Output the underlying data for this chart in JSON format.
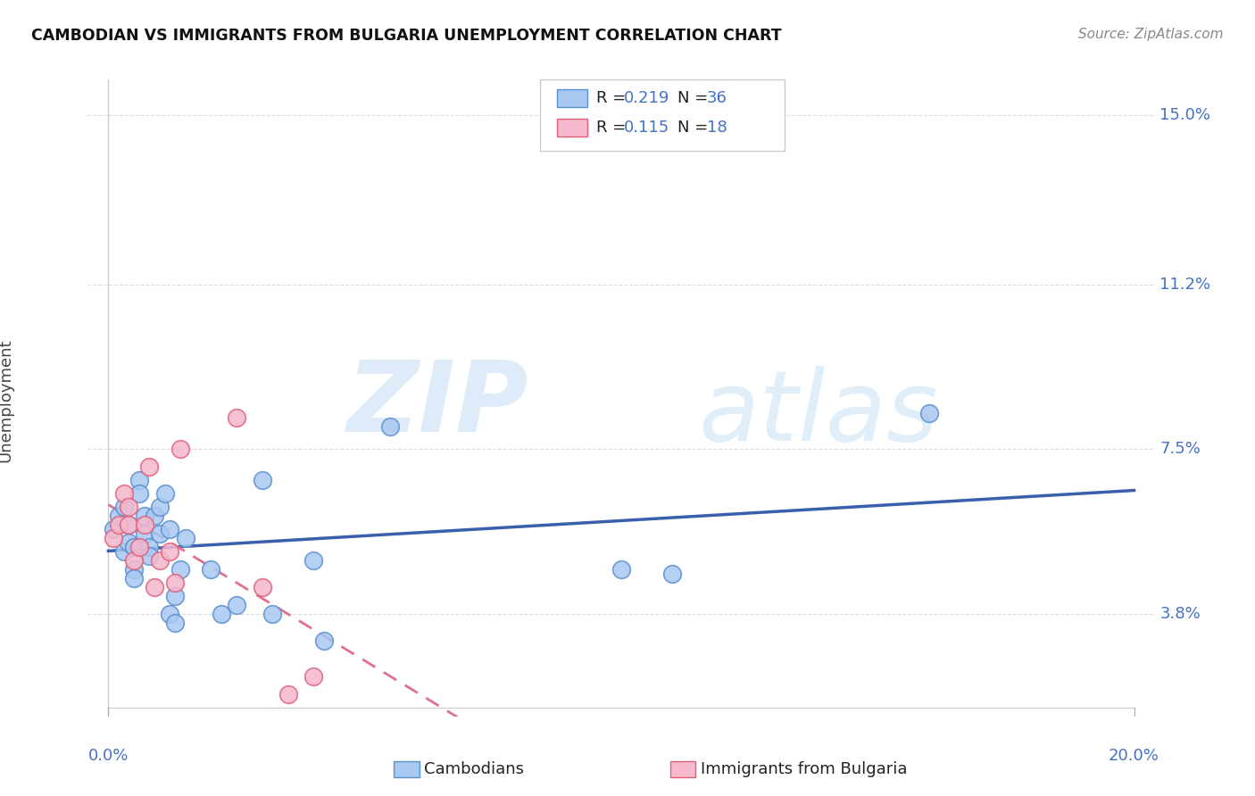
{
  "title": "CAMBODIAN VS IMMIGRANTS FROM BULGARIA UNEMPLOYMENT CORRELATION CHART",
  "source": "Source: ZipAtlas.com",
  "ylabel": "Unemployment",
  "color_cambodian_fill": "#A8C8F0",
  "color_cambodian_edge": "#5A8FD0",
  "color_bulgaria_fill": "#F5B8CC",
  "color_bulgaria_edge": "#E0607A",
  "color_line_cambodian": "#3A5FAD",
  "color_line_bulgaria": "#E07090",
  "color_axis_labels": "#4472C4",
  "color_grid": "#DDDDDD",
  "background_color": "#FFFFFF",
  "cambodian_x": [
    0.001,
    0.002,
    0.003,
    0.003,
    0.004,
    0.004,
    0.005,
    0.005,
    0.005,
    0.006,
    0.006,
    0.007,
    0.007,
    0.008,
    0.008,
    0.009,
    0.01,
    0.01,
    0.011,
    0.012,
    0.012,
    0.013,
    0.013,
    0.014,
    0.015,
    0.02,
    0.022,
    0.025,
    0.03,
    0.032,
    0.04,
    0.042,
    0.055,
    0.1,
    0.11,
    0.16
  ],
  "cambodian_y": [
    0.057,
    0.06,
    0.062,
    0.052,
    0.058,
    0.054,
    0.053,
    0.048,
    0.046,
    0.068,
    0.065,
    0.06,
    0.056,
    0.053,
    0.051,
    0.06,
    0.056,
    0.062,
    0.065,
    0.057,
    0.038,
    0.042,
    0.036,
    0.048,
    0.055,
    0.048,
    0.038,
    0.04,
    0.068,
    0.038,
    0.05,
    0.032,
    0.08,
    0.048,
    0.047,
    0.083
  ],
  "bulgaria_x": [
    0.001,
    0.002,
    0.003,
    0.004,
    0.004,
    0.005,
    0.006,
    0.007,
    0.008,
    0.009,
    0.01,
    0.012,
    0.013,
    0.014,
    0.025,
    0.03,
    0.035,
    0.04
  ],
  "bulgaria_y": [
    0.055,
    0.058,
    0.065,
    0.058,
    0.062,
    0.05,
    0.053,
    0.058,
    0.071,
    0.044,
    0.05,
    0.052,
    0.045,
    0.075,
    0.082,
    0.044,
    0.02,
    0.024
  ],
  "xlim": [
    -0.004,
    0.204
  ],
  "ylim": [
    0.015,
    0.158
  ],
  "ytick_positions": [
    0.038,
    0.075,
    0.112,
    0.15
  ],
  "ytick_labels": [
    "3.8%",
    "7.5%",
    "11.2%",
    "15.0%"
  ],
  "xtick_labels": [
    "0.0%",
    "20.0%"
  ],
  "watermark_zip": "ZIP",
  "watermark_atlas": "atlas",
  "legend_R1": "0.219",
  "legend_N1": "36",
  "legend_R2": "0.115",
  "legend_N2": "18"
}
